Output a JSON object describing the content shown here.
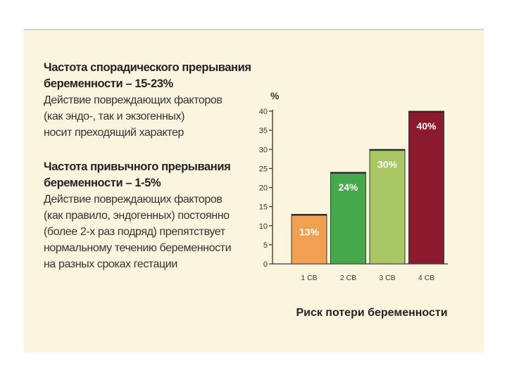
{
  "text_panel": {
    "block1": {
      "heading": [
        "Частота спорадического прерывания",
        "беременности – 15-23%"
      ],
      "body": [
        "Действие повреждающих факторов",
        "(как эндо-, так и экзогенных)",
        "носит преходящий характер"
      ]
    },
    "block2": {
      "heading": [
        "Частота привычного прерывания",
        "беременности – 1-5%"
      ],
      "body": [
        "Действие повреждающих факторов",
        "(как правило, эндогенных) постоянно",
        "(более 2-х раз подряд) препятствует",
        "нормальному течению беременности",
        "на разных сроках гестации"
      ]
    }
  },
  "chart_data": {
    "type": "bar",
    "categories": [
      "1 СВ",
      "2 СВ",
      "3 СВ",
      "4 СВ"
    ],
    "values": [
      13,
      24,
      30,
      40
    ],
    "data_labels": [
      "13%",
      "24%",
      "30%",
      "40%"
    ],
    "colors": [
      "#f0a050",
      "#46a84a",
      "#a9c765",
      "#8b1a2e"
    ],
    "title": "",
    "xlabel": "Риск потери беременности",
    "ylabel": "%",
    "ylim": [
      0,
      40
    ],
    "yticks": [
      0,
      5,
      10,
      15,
      20,
      25,
      30,
      35,
      40
    ],
    "grid": false
  }
}
